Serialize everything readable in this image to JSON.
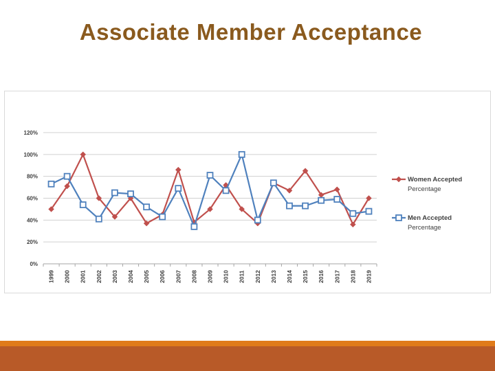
{
  "slide": {
    "title": "Associate Member Acceptance",
    "colors": {
      "title": "#8a5a1e",
      "band_light": "#e07b1a",
      "band_dark": "#b85a28"
    }
  },
  "chart_data": {
    "type": "line",
    "title": "",
    "xlabel": "",
    "ylabel": "",
    "categories": [
      "1999",
      "2000",
      "2001",
      "2002",
      "2003",
      "2004",
      "2005",
      "2006",
      "2007",
      "2008",
      "2009",
      "2010",
      "2011",
      "2012",
      "2013",
      "2014",
      "2015",
      "2016",
      "2017",
      "2018",
      "2019"
    ],
    "ylim": [
      0,
      120
    ],
    "yticks": [
      0,
      20,
      40,
      60,
      80,
      100,
      120
    ],
    "ytick_labels": [
      "0%",
      "20%",
      "40%",
      "60%",
      "80%",
      "100%",
      "120%"
    ],
    "grid": true,
    "legend_placement": "right",
    "series": [
      {
        "name": "Women Accepted Percentage",
        "legend_lines": [
          "Women Accepted",
          "Percentage"
        ],
        "color": "#c0504d",
        "marker": "diamond",
        "values": [
          50,
          71,
          100,
          60,
          43,
          60,
          37,
          45,
          86,
          38,
          50,
          72,
          50,
          37,
          74,
          67,
          85,
          63,
          68,
          36,
          60
        ]
      },
      {
        "name": "Men Accepted Percentage",
        "legend_lines": [
          "Men Accepted",
          "Percentage"
        ],
        "color": "#4f81bd",
        "marker": "square",
        "values": [
          73,
          80,
          54,
          41,
          65,
          64,
          52,
          43,
          69,
          34,
          81,
          67,
          100,
          40,
          74,
          53,
          53,
          58,
          59,
          46,
          48
        ]
      }
    ]
  }
}
